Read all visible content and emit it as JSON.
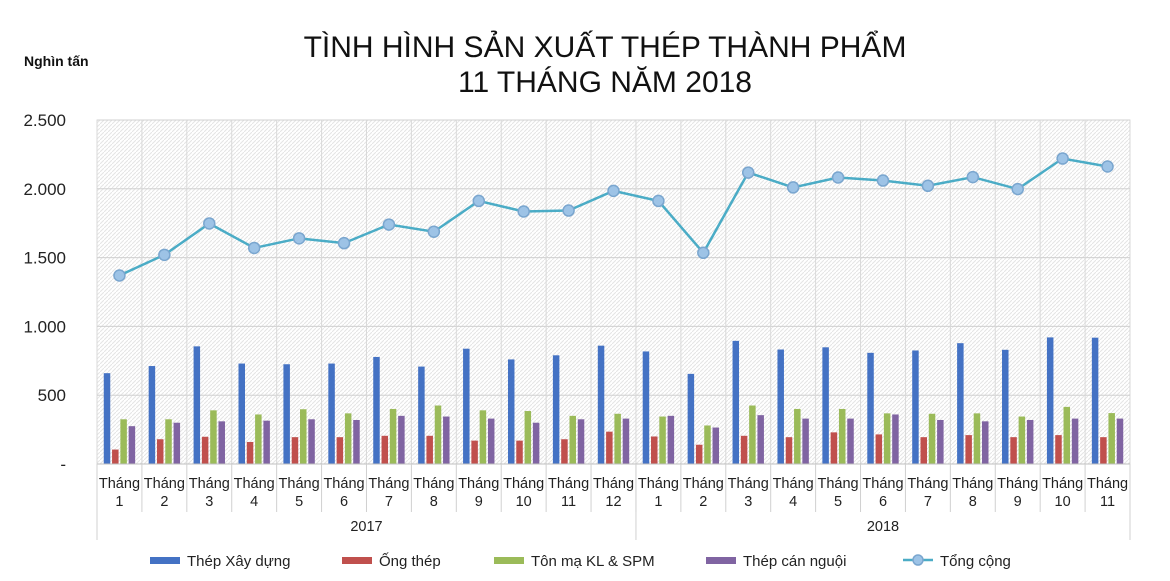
{
  "chart_data": {
    "type": "bar+line",
    "title_line1": "TÌNH HÌNH SẢN XUẤT THÉP THÀNH PHẨM",
    "title_line2": "11 THÁNG NĂM 2018",
    "ylabel": "Nghìn tấn",
    "ylim": [
      0,
      2500
    ],
    "yticks": [
      0,
      500,
      1000,
      1500,
      2000,
      2500
    ],
    "ytick_labels": [
      "-",
      "500",
      "1.000",
      "1.500",
      "2.000",
      "2.500"
    ],
    "grid": true,
    "legend_position": "bottom",
    "month_word": "Tháng",
    "categories": [
      "1",
      "2",
      "3",
      "4",
      "5",
      "6",
      "7",
      "8",
      "9",
      "10",
      "11",
      "12",
      "1",
      "2",
      "3",
      "4",
      "5",
      "6",
      "7",
      "8",
      "9",
      "10",
      "11"
    ],
    "groups": [
      {
        "label": "2017",
        "count": 12
      },
      {
        "label": "2018",
        "count": 11
      }
    ],
    "series": [
      {
        "name": "Thép Xây dựng",
        "type": "bar",
        "color": "#4472C4",
        "values": [
          660,
          712,
          855,
          730,
          725,
          730,
          778,
          708,
          838,
          760,
          790,
          860,
          818,
          655,
          895,
          832,
          848,
          808,
          825,
          878,
          830,
          920,
          918
        ]
      },
      {
        "name": "Ống thép",
        "type": "bar",
        "color": "#C0504D",
        "values": [
          105,
          180,
          198,
          160,
          195,
          195,
          205,
          205,
          170,
          170,
          180,
          235,
          200,
          140,
          205,
          195,
          230,
          215,
          195,
          210,
          195,
          210,
          195
        ]
      },
      {
        "name": "Tôn mạ KL & SPM",
        "type": "bar",
        "color": "#9BBB59",
        "values": [
          325,
          325,
          390,
          360,
          398,
          368,
          400,
          425,
          390,
          385,
          350,
          365,
          345,
          280,
          425,
          400,
          400,
          368,
          365,
          368,
          345,
          415,
          370
        ]
      },
      {
        "name": "Thép cán nguội",
        "type": "bar",
        "color": "#8064A2",
        "values": [
          275,
          300,
          310,
          315,
          325,
          320,
          350,
          345,
          330,
          300,
          325,
          330,
          350,
          265,
          355,
          330,
          330,
          360,
          320,
          310,
          320,
          330,
          330
        ]
      },
      {
        "name": "Tổng cộng",
        "type": "line",
        "color": "#4BACC6",
        "values": [
          1370,
          1520,
          1748,
          1570,
          1640,
          1605,
          1740,
          1688,
          1912,
          1835,
          1842,
          1985,
          1912,
          1535,
          2118,
          2010,
          2082,
          2060,
          2022,
          2085,
          1998,
          2220,
          2162
        ]
      }
    ]
  }
}
